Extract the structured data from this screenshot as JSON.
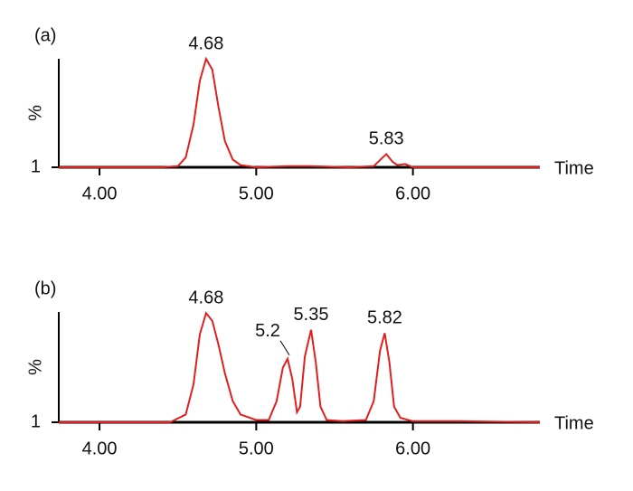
{
  "chart_data": [
    {
      "type": "line",
      "title": "(a)",
      "ylabel": "%",
      "xlabel": "Time",
      "x": [
        3.74,
        4.4,
        4.5,
        4.55,
        4.6,
        4.64,
        4.68,
        4.72,
        4.76,
        4.8,
        4.85,
        4.9,
        5.0,
        5.2,
        5.35,
        5.6,
        5.75,
        5.8,
        5.83,
        5.87,
        5.9,
        5.95,
        6.0,
        6.81
      ],
      "series": [
        {
          "color": "#e0201e",
          "values": [
            1,
            1,
            2,
            10,
            40,
            80,
            100,
            90,
            55,
            25,
            8,
            3,
            1,
            2,
            2,
            1,
            2,
            9,
            13,
            6,
            3,
            4,
            1,
            1
          ]
        }
      ],
      "peak_labels": [
        4.68,
        5.83
      ],
      "xlim": [
        3.74,
        6.81
      ],
      "xticks": [
        {
          "value": 4,
          "label": "4.00"
        },
        {
          "value": 5,
          "label": "5.00"
        },
        {
          "value": 6,
          "label": "6.00"
        }
      ],
      "ylim": [
        1,
        100
      ],
      "yticks": [
        1
      ]
    },
    {
      "type": "line",
      "title": "(b)",
      "ylabel": "%",
      "xlabel": "Time",
      "x": [
        3.74,
        4.45,
        4.55,
        4.6,
        4.64,
        4.68,
        4.72,
        4.76,
        4.8,
        4.85,
        4.9,
        5.0,
        5.08,
        5.13,
        5.17,
        5.2,
        5.23,
        5.26,
        5.28,
        5.31,
        5.35,
        5.38,
        5.41,
        5.45,
        5.55,
        5.7,
        5.75,
        5.79,
        5.82,
        5.85,
        5.88,
        5.92,
        6.0,
        6.3,
        6.81
      ],
      "series": [
        {
          "color": "#e0201e",
          "values": [
            1,
            1,
            8,
            35,
            80,
            99,
            92,
            70,
            45,
            20,
            8,
            3,
            3,
            20,
            50,
            58,
            40,
            10,
            15,
            60,
            84,
            55,
            15,
            3,
            2,
            3,
            20,
            65,
            81,
            55,
            15,
            5,
            2,
            2,
            1
          ]
        }
      ],
      "peak_labels": [
        4.68,
        5.2,
        5.35,
        5.82
      ],
      "xlim": [
        3.74,
        6.81
      ],
      "xticks": [
        {
          "value": 4,
          "label": "4.00"
        },
        {
          "value": 5,
          "label": "5.00"
        },
        {
          "value": 6,
          "label": "6.00"
        }
      ],
      "ylim": [
        1,
        100
      ],
      "yticks": [
        1
      ]
    }
  ]
}
